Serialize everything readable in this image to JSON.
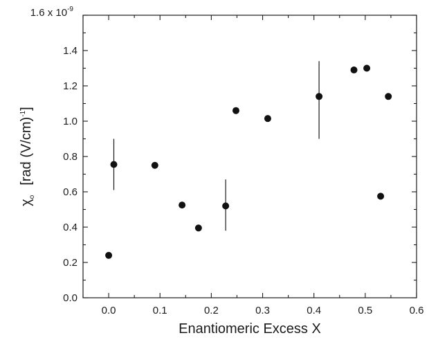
{
  "chart_data": {
    "type": "scatter",
    "title": "",
    "xlabel": "Enantiomeric Excess  X",
    "ylabel": {
      "symbol": "χ",
      "subscript": "o",
      "units": "[rad (V/cm)",
      "exponent": "-1",
      "close": "]"
    },
    "xlim": [
      -0.05,
      0.6
    ],
    "ylim": [
      0.0,
      1.6
    ],
    "x_ticks": [
      0.0,
      0.1,
      0.2,
      0.3,
      0.4,
      0.5,
      0.6
    ],
    "x_tick_labels": [
      "0.0",
      "0.1",
      "0.2",
      "0.3",
      "0.4",
      "0.5",
      "0.6"
    ],
    "y_ticks": [
      0.0,
      0.2,
      0.4,
      0.6,
      0.8,
      1.0,
      1.2,
      1.4,
      1.6
    ],
    "y_tick_labels": [
      "0.0",
      "0.2",
      "0.4",
      "0.6",
      "0.8",
      "1.0",
      "1.2",
      "1.4",
      "1.6 x 10"
    ],
    "y_top_exponent": "-9",
    "grid": false,
    "series": [
      {
        "points": [
          {
            "x": 0.0,
            "y": 0.24
          },
          {
            "x": 0.01,
            "y": 0.755,
            "err_low": 0.61,
            "err_high": 0.9
          },
          {
            "x": 0.09,
            "y": 0.75
          },
          {
            "x": 0.143,
            "y": 0.525
          },
          {
            "x": 0.175,
            "y": 0.395
          },
          {
            "x": 0.228,
            "y": 0.52,
            "err_low": 0.38,
            "err_high": 0.67
          },
          {
            "x": 0.248,
            "y": 1.06
          },
          {
            "x": 0.31,
            "y": 1.015
          },
          {
            "x": 0.41,
            "y": 1.14,
            "err_low": 0.9,
            "err_high": 1.34
          },
          {
            "x": 0.478,
            "y": 1.29
          },
          {
            "x": 0.503,
            "y": 1.3
          },
          {
            "x": 0.53,
            "y": 0.575
          },
          {
            "x": 0.545,
            "y": 1.14
          }
        ]
      }
    ]
  }
}
